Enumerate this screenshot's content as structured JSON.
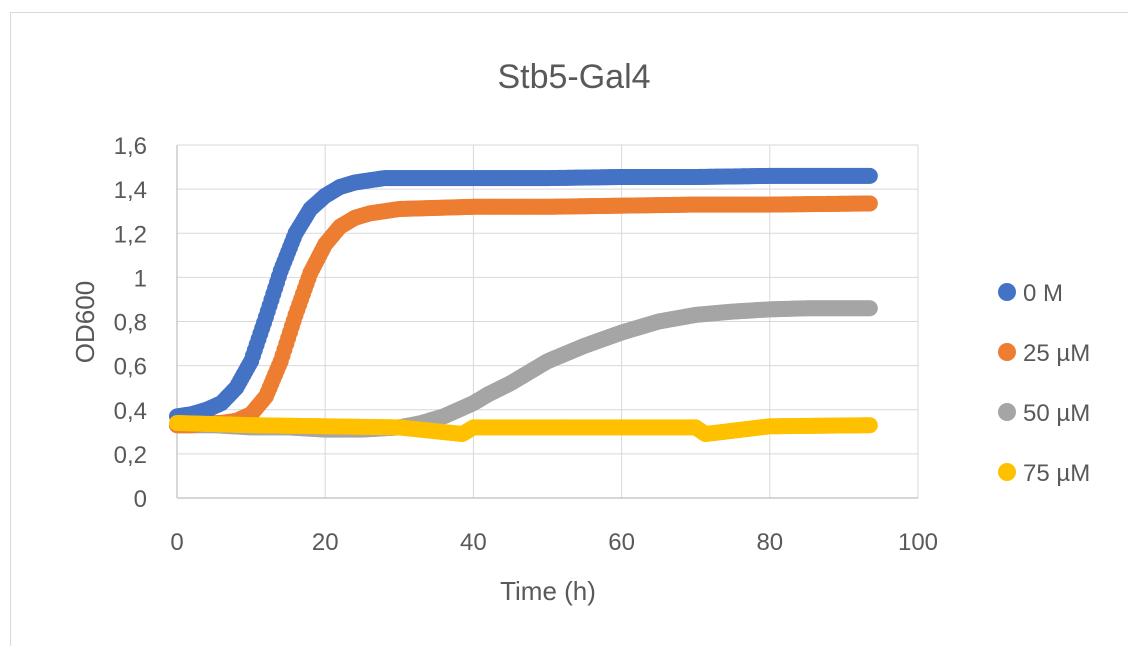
{
  "chart_data": {
    "type": "scatter",
    "title": "Stb5-Gal4",
    "xlabel": "Time (h)",
    "ylabel": "OD600",
    "xlim": [
      0,
      100
    ],
    "ylim": [
      0,
      1.6
    ],
    "x_ticks": [
      0,
      20,
      40,
      60,
      80,
      100
    ],
    "x_tick_labels": [
      "0",
      "20",
      "40",
      "60",
      "80",
      "100"
    ],
    "y_ticks": [
      0,
      0.2,
      0.4,
      0.6,
      0.8,
      1.0,
      1.2,
      1.4,
      1.6
    ],
    "y_tick_labels": [
      "0",
      "0,2",
      "0,4",
      "0,6",
      "0,8",
      "1",
      "1,2",
      "1,4",
      "1,6"
    ],
    "grid": true,
    "legend_position": "right",
    "series": [
      {
        "name": "0 M",
        "color": "#4472c4",
        "x": [
          0,
          2,
          4,
          6,
          8,
          10,
          12,
          14,
          16,
          18,
          20,
          22,
          24,
          26,
          28,
          30,
          35,
          40,
          50,
          60,
          70,
          80,
          93.5
        ],
        "y": [
          0.37,
          0.38,
          0.4,
          0.43,
          0.5,
          0.62,
          0.82,
          1.03,
          1.2,
          1.31,
          1.37,
          1.41,
          1.43,
          1.44,
          1.45,
          1.45,
          1.45,
          1.45,
          1.45,
          1.455,
          1.455,
          1.46,
          1.46
        ]
      },
      {
        "name": "25 µM",
        "color": "#ed7d31",
        "x": [
          0,
          2,
          4,
          6,
          8,
          10,
          12,
          14,
          16,
          18,
          20,
          22,
          24,
          26,
          28,
          30,
          35,
          40,
          50,
          60,
          70,
          80,
          93.5
        ],
        "y": [
          0.33,
          0.33,
          0.34,
          0.34,
          0.35,
          0.38,
          0.46,
          0.62,
          0.83,
          1.02,
          1.15,
          1.23,
          1.27,
          1.29,
          1.3,
          1.31,
          1.315,
          1.32,
          1.32,
          1.325,
          1.33,
          1.33,
          1.335
        ]
      },
      {
        "name": "50 µM",
        "color": "#a5a5a5",
        "x": [
          0,
          5,
          10,
          15,
          20,
          25,
          30,
          33,
          36,
          38,
          40,
          42,
          45,
          48,
          50,
          55,
          60,
          65,
          70,
          75,
          80,
          85,
          93.5
        ],
        "y": [
          0.33,
          0.33,
          0.32,
          0.32,
          0.31,
          0.31,
          0.32,
          0.34,
          0.37,
          0.4,
          0.43,
          0.47,
          0.52,
          0.58,
          0.62,
          0.69,
          0.75,
          0.8,
          0.83,
          0.845,
          0.855,
          0.86,
          0.86
        ]
      },
      {
        "name": "75 µM",
        "color": "#ffc000",
        "x": [
          0,
          5,
          10,
          20,
          30,
          38.5,
          40,
          50,
          60,
          70,
          71.3,
          80,
          93.5
        ],
        "y": [
          0.34,
          0.335,
          0.33,
          0.325,
          0.32,
          0.29,
          0.32,
          0.32,
          0.32,
          0.32,
          0.29,
          0.325,
          0.33
        ]
      }
    ]
  }
}
